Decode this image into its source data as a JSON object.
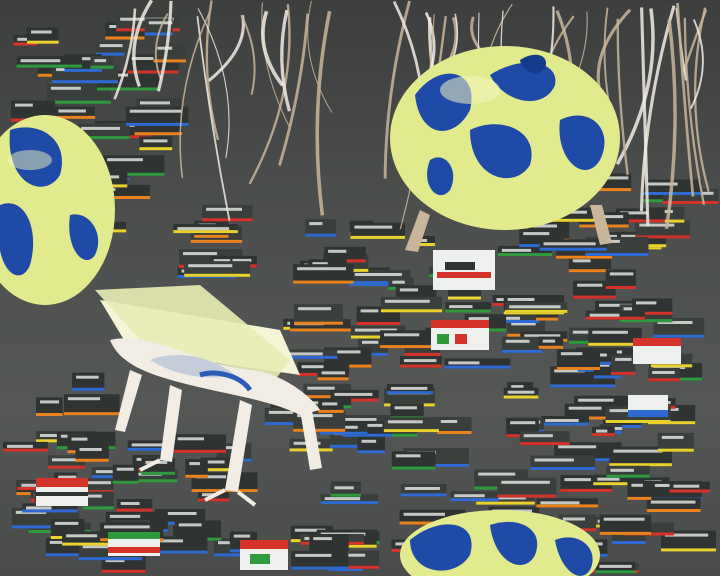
{
  "image": {
    "kind": "ai-generated abstract collage",
    "colors": {
      "background": "#4b4e4c",
      "globe_yellow": "#e2ea8e",
      "globe_blue": "#1f4aa8",
      "root_tan": "#c9b59a",
      "root_white": "#f1ece4",
      "stripe_red": "#d4332a",
      "stripe_green": "#2f9a3c",
      "stripe_orange": "#e8821f",
      "stripe_yellow": "#e9d12e",
      "stripe_blue": "#2d6ad1",
      "card_dark": "#2f3432"
    },
    "subjects": [
      "root-canopy",
      "globe-creature-large",
      "globe-left",
      "globe-bottom",
      "skeletal-chair",
      "colored-label-tiles",
      "flag-cards"
    ]
  }
}
